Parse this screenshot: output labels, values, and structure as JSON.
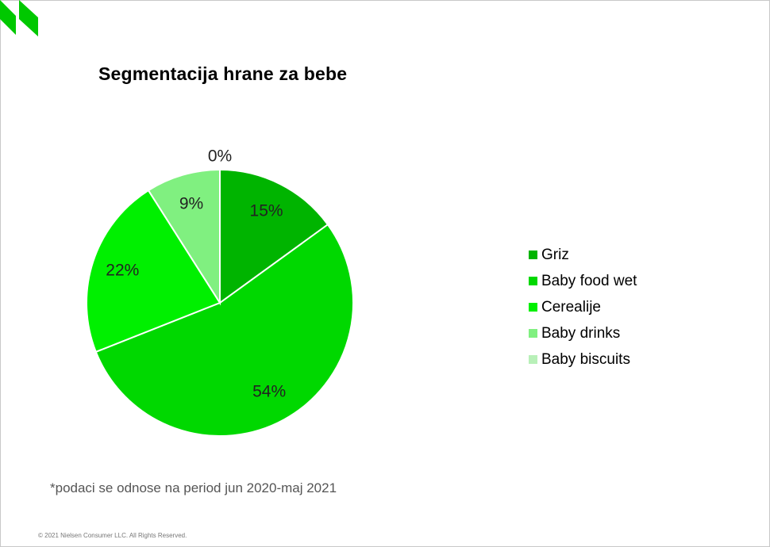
{
  "title": "Segmentacija hrane za bebe",
  "footnote": "*podaci se odnose na period jun 2020-maj 2021",
  "copyright": "© 2021 Nielsen Consumer LLC. All Rights Reserved.",
  "logo": {
    "icon": "nielsen-logo-icon",
    "color": "#00c800"
  },
  "chart_data": {
    "type": "pie",
    "title": "Segmentacija hrane za bebe",
    "legend_position": "right",
    "categories": [
      "Griz",
      "Baby food wet",
      "Cerealije",
      "Baby drinks",
      "Baby biscuits"
    ],
    "values": [
      15,
      54,
      22,
      9,
      0
    ],
    "labels": [
      "15%",
      "54%",
      "22%",
      "9%",
      "0%"
    ],
    "colors": [
      "#00b400",
      "#00d800",
      "#00f000",
      "#80f080",
      "#b8f0b8"
    ]
  }
}
